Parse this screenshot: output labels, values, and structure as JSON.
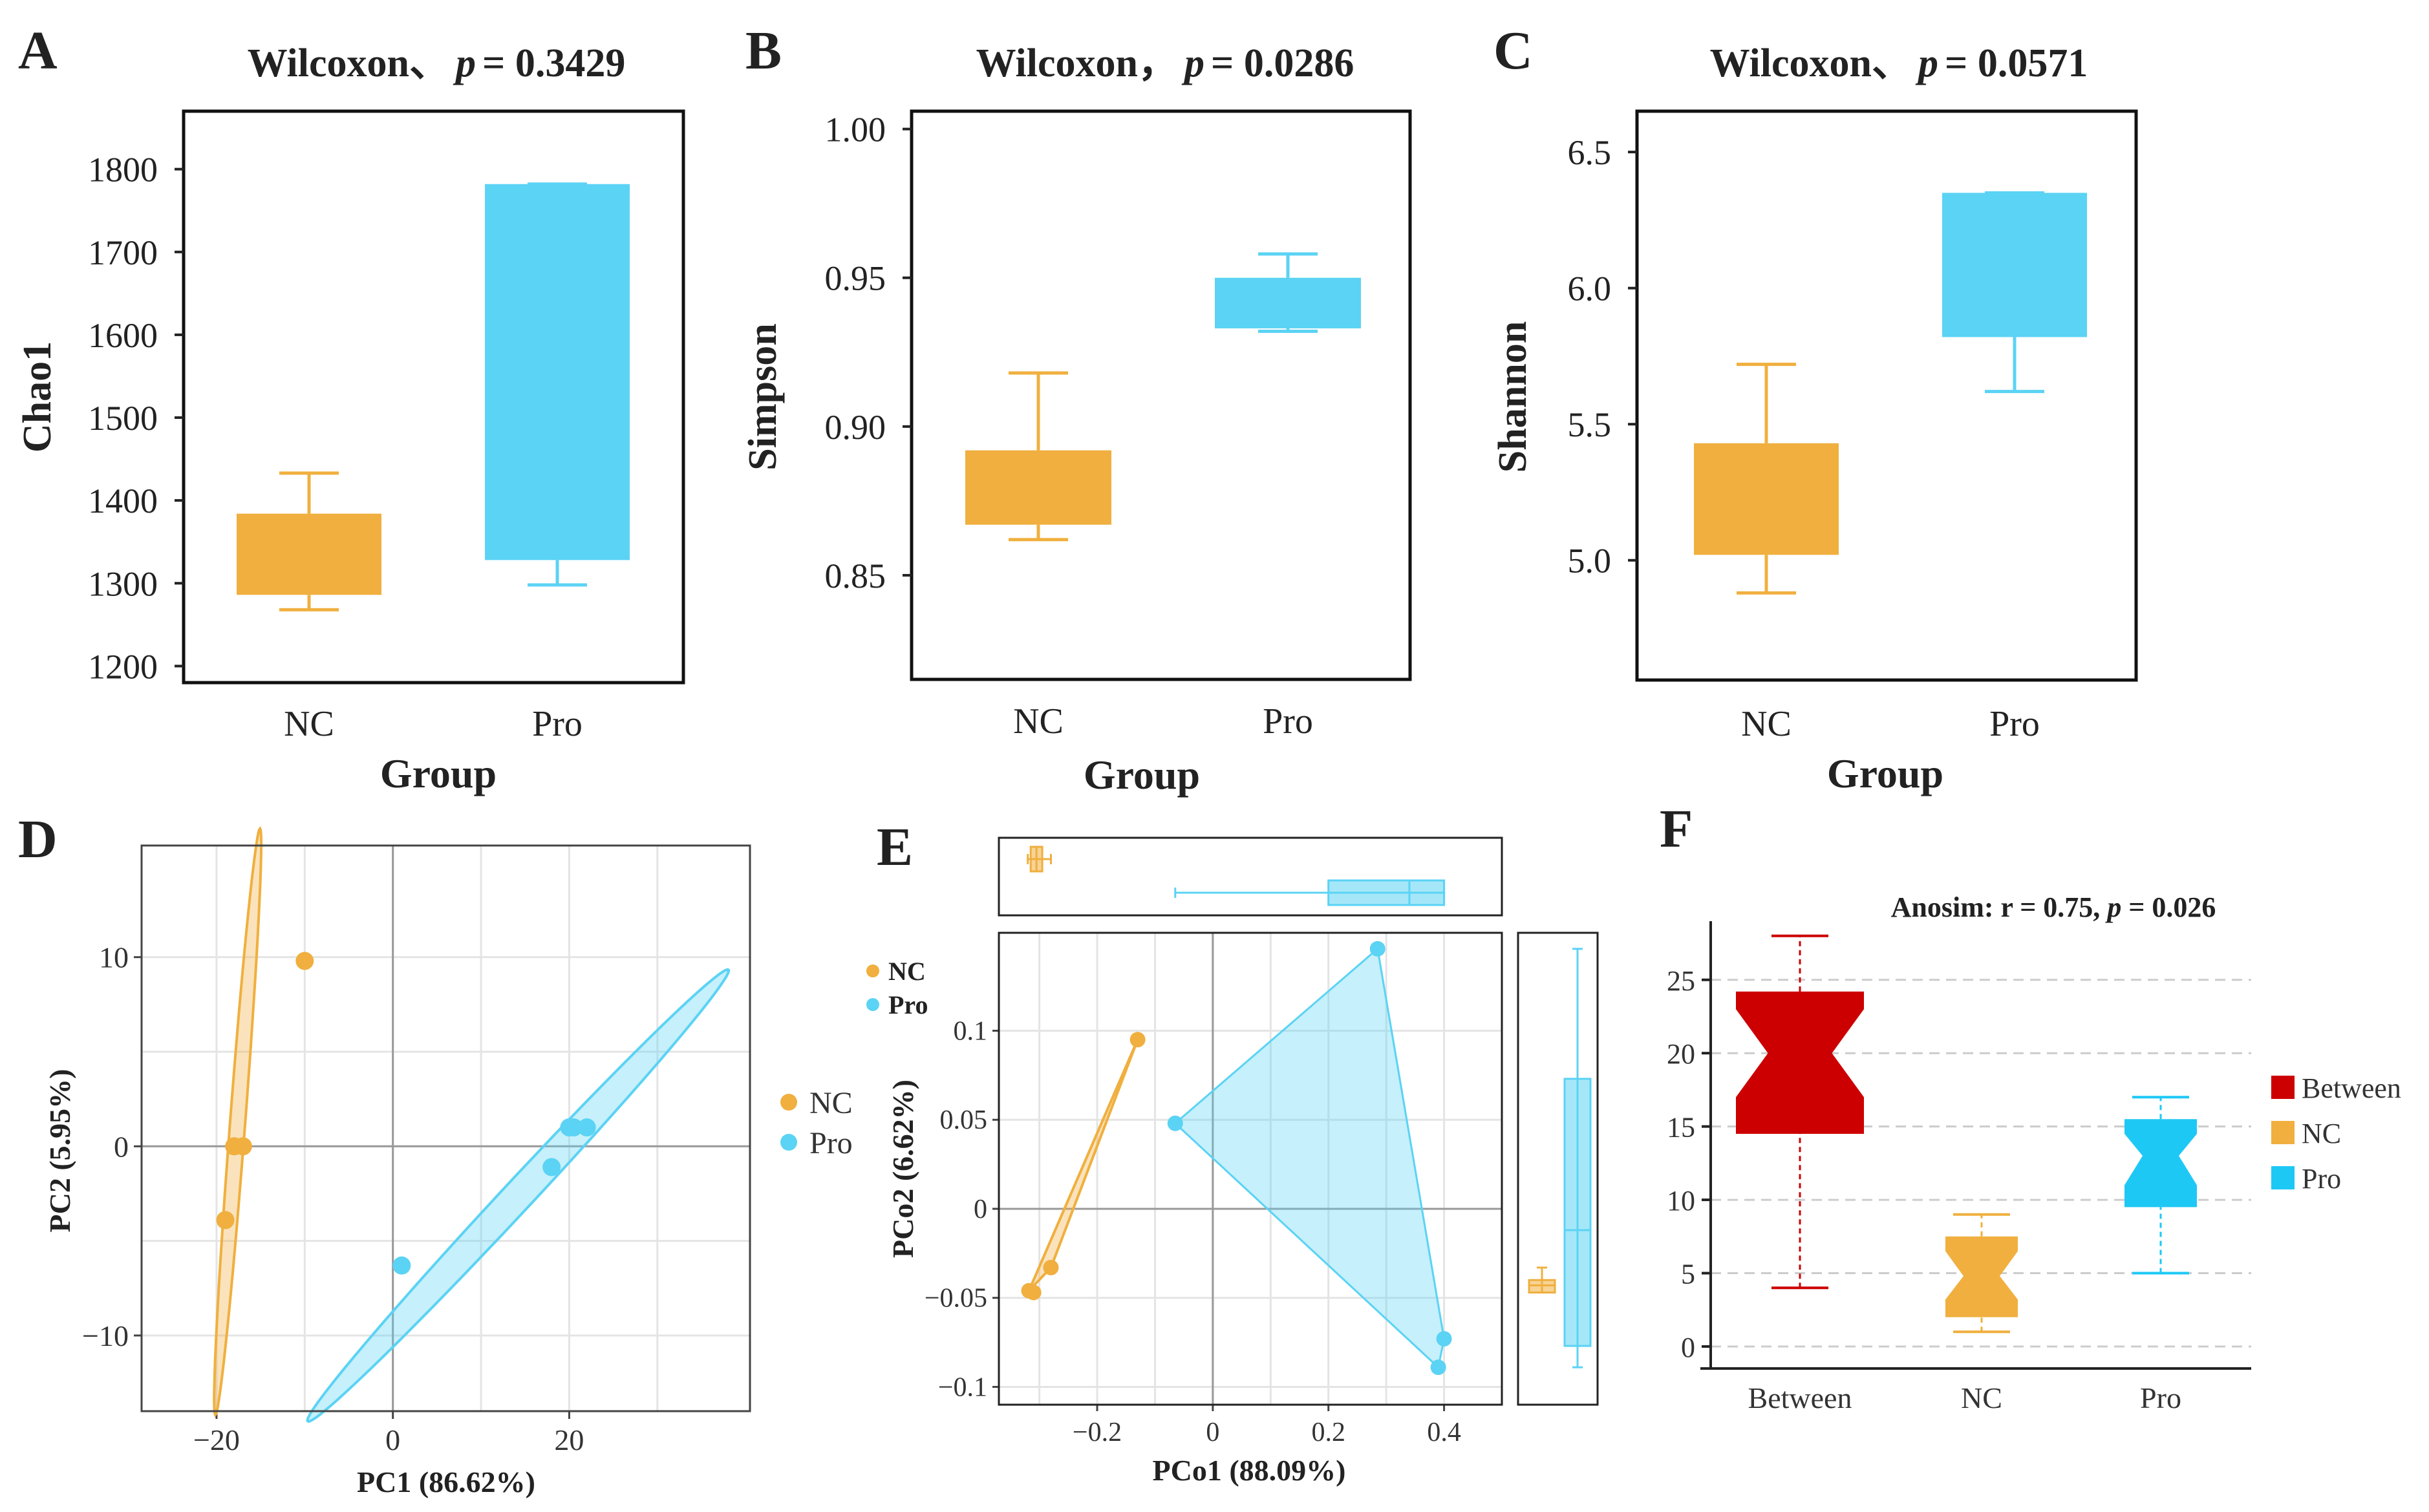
{
  "colors": {
    "nc": "#F0AF3E",
    "pro": "#5BD3F4",
    "between": "#CC0000",
    "pro_f": "#1EC8F5",
    "zero": "#999999"
  },
  "chart_data": [
    {
      "id": "A",
      "type": "box",
      "panel_label": "A",
      "title_prefix": "Wilcoxon、",
      "p_label": "p",
      "p_value": "= 0.3429",
      "ylabel": "Chao1",
      "xlabel": "Group",
      "yticks": [
        "1200",
        "1300",
        "1400",
        "1500",
        "1600",
        "1700",
        "1800"
      ],
      "ylim": [
        1180,
        1870
      ],
      "categories": [
        "NC",
        "Pro"
      ],
      "boxes": [
        {
          "name": "NC",
          "whisker_low": 1268,
          "q1": 1286,
          "q3": 1384,
          "whisker_high": 1433
        },
        {
          "name": "Pro",
          "whisker_low": 1298,
          "q1": 1328,
          "q3": 1782,
          "whisker_high": 1782
        }
      ]
    },
    {
      "id": "B",
      "type": "box",
      "panel_label": "B",
      "title_prefix": "Wilcoxon，",
      "p_label": "p",
      "p_value": "= 0.0286",
      "ylabel": "Simpson",
      "xlabel": "Group",
      "yticks": [
        "0.85",
        "0.90",
        "0.95",
        "1.00"
      ],
      "ylim": [
        0.815,
        1.006
      ],
      "categories": [
        "NC",
        "Pro"
      ],
      "boxes": [
        {
          "name": "NC",
          "whisker_low": 0.862,
          "q1": 0.867,
          "q3": 0.892,
          "whisker_high": 0.918
        },
        {
          "name": "Pro",
          "whisker_low": 0.932,
          "q1": 0.933,
          "q3": 0.95,
          "whisker_high": 0.958
        }
      ]
    },
    {
      "id": "C",
      "type": "box",
      "panel_label": "C",
      "title_prefix": "Wilcoxon、",
      "p_label": "p",
      "p_value": "= 0.0571",
      "ylabel": "Shannon",
      "xlabel": "Group",
      "yticks": [
        "5.0",
        "5.5",
        "6.0",
        "6.5"
      ],
      "ylim": [
        4.56,
        6.65
      ],
      "categories": [
        "NC",
        "Pro"
      ],
      "boxes": [
        {
          "name": "NC",
          "whisker_low": 4.88,
          "q1": 5.02,
          "q3": 5.43,
          "whisker_high": 5.72
        },
        {
          "name": "Pro",
          "whisker_low": 5.62,
          "q1": 5.82,
          "q3": 6.35,
          "whisker_high": 6.35
        }
      ]
    },
    {
      "id": "D",
      "type": "scatter",
      "panel_label": "D",
      "xlabel": "PC1 (86.62%)",
      "ylabel": "PC2 (5.95%)",
      "xticks": [
        "−20",
        "0",
        "20"
      ],
      "yticks": [
        "−10",
        "0",
        "10"
      ],
      "xlim": [
        -28.5,
        40.5
      ],
      "ylim": [
        -14,
        15.9
      ],
      "legend": [
        "NC",
        "Pro"
      ],
      "series": [
        {
          "name": "NC",
          "points": [
            [
              -10,
              9.8
            ],
            [
              -18,
              0
            ],
            [
              -17,
              0
            ],
            [
              -19,
              -3.9
            ]
          ],
          "ellipse": {
            "cx": -17.6,
            "cy": 1.3,
            "rx": 15.7,
            "ry": 0.85,
            "angle_deg": 80.7
          }
        },
        {
          "name": "Pro",
          "points": [
            [
              1,
              -6.3
            ],
            [
              18,
              -1.1
            ],
            [
              20,
              1
            ],
            [
              22,
              1
            ],
            [
              20.5,
              1
            ]
          ],
          "ellipse": {
            "cx": 14.2,
            "cy": -2.6,
            "rx": 26.7,
            "ry": 1.05,
            "angle_deg": 26.5
          }
        }
      ]
    },
    {
      "id": "E",
      "type": "scatter",
      "panel_label": "E",
      "xlabel": "PCo1 (88.09%)",
      "ylabel": "PCo2 (6.62%)",
      "xticks": [
        "−0.2",
        "0",
        "0.2",
        "0.4"
      ],
      "yticks": [
        "−0.1",
        "−0.05",
        "0",
        "0.05",
        "0.1"
      ],
      "xlim": [
        -0.37,
        0.5
      ],
      "ylim": [
        -0.11,
        0.155
      ],
      "legend": [
        "NC",
        "Pro"
      ],
      "series": [
        {
          "name": "NC",
          "points": [
            [
              -0.318,
              -0.046
            ],
            [
              -0.31,
              -0.047
            ],
            [
              -0.28,
              -0.033
            ],
            [
              -0.13,
              0.095
            ]
          ]
        },
        {
          "name": "Pro",
          "points": [
            [
              -0.065,
              0.048
            ],
            [
              0.285,
              0.146
            ],
            [
              0.4,
              -0.073
            ],
            [
              0.39,
              -0.089
            ]
          ]
        }
      ],
      "box_x": [
        {
          "name": "NC",
          "whisker_low": -0.32,
          "q1": -0.315,
          "median": -0.305,
          "q3": -0.295,
          "whisker_high": -0.28
        },
        {
          "name": "Pro",
          "whisker_low": -0.065,
          "q1": 0.2,
          "median": 0.34,
          "q3": 0.4,
          "whisker_high": 0.4
        }
      ],
      "box_y": [
        {
          "name": "NC",
          "whisker_low": -0.047,
          "q1": -0.047,
          "median": -0.043,
          "q3": -0.04,
          "whisker_high": -0.033
        },
        {
          "name": "Pro",
          "whisker_low": -0.089,
          "q1": -0.077,
          "median": -0.012,
          "q3": 0.073,
          "whisker_high": 0.146
        }
      ]
    },
    {
      "id": "F",
      "type": "notched_box",
      "panel_label": "F",
      "title": "Anosim: r = 0.75, ",
      "p_label": "p",
      "p_value": " = 0.026",
      "categories": [
        "Between",
        "NC",
        "Pro"
      ],
      "yticks": [
        "0",
        "5",
        "10",
        "15",
        "20",
        "25"
      ],
      "ylim": [
        -1.5,
        29
      ],
      "legend": [
        "Between",
        "NC",
        "Pro"
      ],
      "boxes": [
        {
          "name": "Between",
          "whisker_low": 4,
          "q1": 14.5,
          "notch_low": 17,
          "median": 20,
          "notch_high": 23,
          "q3": 24.2,
          "whisker_high": 28
        },
        {
          "name": "NC",
          "whisker_low": 1,
          "q1": 2,
          "notch_low": 3.2,
          "median": 4.8,
          "notch_high": 6.5,
          "q3": 7.5,
          "whisker_high": 9
        },
        {
          "name": "Pro",
          "whisker_low": 5,
          "q1": 9.5,
          "notch_low": 11,
          "median": 13,
          "notch_high": 14.5,
          "q3": 15.5,
          "whisker_high": 17
        }
      ]
    }
  ]
}
